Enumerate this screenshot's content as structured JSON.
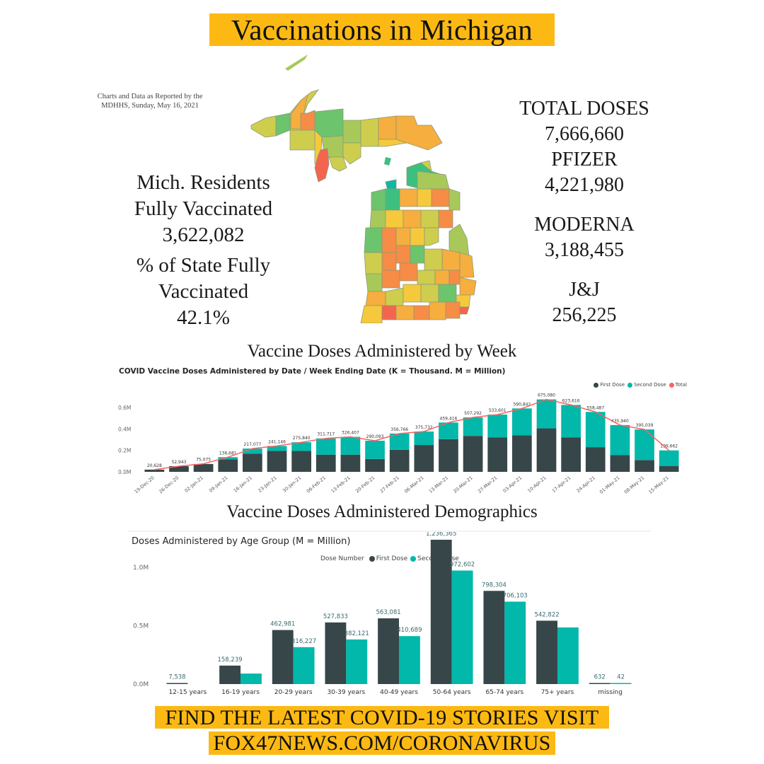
{
  "header": {
    "title": "Vaccinations in Michigan",
    "source_note_line1": "Charts and Data as Reported by the",
    "source_note_line2": "MDHHS, Sunday, May 16, 2021",
    "banner_color": "#fdb913"
  },
  "left_stats": {
    "residents_label_1": "Mich. Residents",
    "residents_label_2": "Fully Vaccinated",
    "residents_value": "3,622,082",
    "percent_label_1": "% of State Fully",
    "percent_label_2": "Vaccinated",
    "percent_value": "42.1%"
  },
  "right_stats": {
    "total_label": "TOTAL DOSES",
    "total_value": "7,666,660",
    "pfizer_label": "PFIZER",
    "pfizer_value": "4,221,980",
    "moderna_label": "MODERNA",
    "moderna_value": "3,188,455",
    "jj_label": "J&J",
    "jj_value": "256,225"
  },
  "map": {
    "name": "Michigan county vaccination map",
    "color_scale": [
      "#0fb8a0",
      "#3dbf7f",
      "#6cc46c",
      "#a8c95a",
      "#cfcd4d",
      "#f5c93b",
      "#f6ae3e",
      "#f68c45",
      "#f4654f"
    ]
  },
  "sections": {
    "weekly_heading": "Vaccine Doses Administered by Week",
    "demographics_heading": "Vaccine Doses Administered Demographics"
  },
  "colors": {
    "first_dose": "#374649",
    "second_dose": "#01b8aa",
    "total": "#fd625e",
    "cta_banner": "#fdb913"
  },
  "chart_data": [
    {
      "type": "bar",
      "stacked": true,
      "title": "COVID Vaccine Doses Administered by Date / Week Ending Date (K = Thousand. M = Million)",
      "legend": [
        "First Dose",
        "Second Dose",
        "Total"
      ],
      "legend_position": "top-right",
      "xlabel": "",
      "ylabel": "",
      "ylim": [
        0,
        0.7
      ],
      "yticks": [
        "0.0M",
        "0.2M",
        "0.4M",
        "0.6M"
      ],
      "grid": false,
      "categories": [
        "19-Dec-20",
        "26-Dec-20",
        "02-Jan-21",
        "09-Jan-21",
        "16-Jan-21",
        "23-Jan-21",
        "30-Jan-21",
        "06-Feb-21",
        "13-Feb-21",
        "20-Feb-21",
        "27-Feb-21",
        "06-Mar-21",
        "13-Mar-21",
        "20-Mar-21",
        "27-Mar-21",
        "03-Apr-21",
        "10-Apr-21",
        "17-Apr-21",
        "24-Apr-21",
        "01-May-21",
        "08-May-21",
        "15-May-21"
      ],
      "total_labels": [
        "20,628",
        "52,943",
        "75,075",
        "136,681",
        "217,077",
        "241,146",
        "275,840",
        "311,717",
        "326,407",
        "290,093",
        "356,766",
        "375,732",
        "459,416",
        "507,292",
        "533,601",
        "590,842",
        "675,080",
        "623,616",
        "558,487",
        "435,940",
        "395,039",
        "199,662"
      ],
      "series": [
        {
          "name": "First Dose",
          "values": [
            20628,
            52943,
            73000,
            115000,
            170000,
            195000,
            195000,
            160000,
            160000,
            120000,
            205000,
            250000,
            305000,
            335000,
            320000,
            340000,
            405000,
            320000,
            230000,
            155000,
            110000,
            55000
          ]
        },
        {
          "name": "Second Dose",
          "values": [
            0,
            0,
            2075,
            21681,
            47077,
            46146,
            80840,
            151717,
            166407,
            170093,
            151766,
            125732,
            154416,
            172292,
            213601,
            250842,
            270080,
            303616,
            328487,
            280940,
            285039,
            144662
          ]
        },
        {
          "name": "Total",
          "values": [
            20628,
            52943,
            75075,
            136681,
            217077,
            241146,
            275840,
            311717,
            326407,
            290093,
            356766,
            375732,
            459416,
            507292,
            533601,
            590842,
            675080,
            623616,
            558487,
            435940,
            395039,
            199662
          ]
        }
      ]
    },
    {
      "type": "bar",
      "stacked": false,
      "title": "Doses Administered by Age Group (M = Million)",
      "legend_title": "Dose Number",
      "legend": [
        "First Dose",
        "Second Dose"
      ],
      "legend_position": "top-center",
      "xlabel": "",
      "ylabel": "",
      "ylim": [
        0,
        1.3
      ],
      "yticks": [
        "0.0M",
        "0.5M",
        "1.0M"
      ],
      "grid": false,
      "categories": [
        "12-15 years",
        "16-19 years",
        "20-29 years",
        "30-39 years",
        "40-49 years",
        "50-64 years",
        "65-74 years",
        "75+ years",
        "missing"
      ],
      "series": [
        {
          "name": "First Dose",
          "values": [
            7538,
            158239,
            462981,
            527833,
            563081,
            1236365,
            798304,
            542822,
            632
          ],
          "labels": [
            "7,538",
            "158,239",
            "462,981",
            "527,833",
            "563,081",
            "1,236,365",
            "798,304",
            "542,822",
            "632"
          ]
        },
        {
          "name": "Second Dose",
          "values": [
            0,
            90000,
            316227,
            382121,
            410689,
            972602,
            706103,
            485000,
            42
          ],
          "labels": [
            "",
            "",
            "316,227",
            "382,121",
            "410,689",
            "972,602",
            "706,103",
            "",
            "42"
          ]
        }
      ]
    }
  ],
  "footer": {
    "cta_line1": "FIND THE LATEST COVID-19 STORIES VISIT",
    "cta_line2": "FOX47NEWS.COM/CORONAVIRUS"
  }
}
